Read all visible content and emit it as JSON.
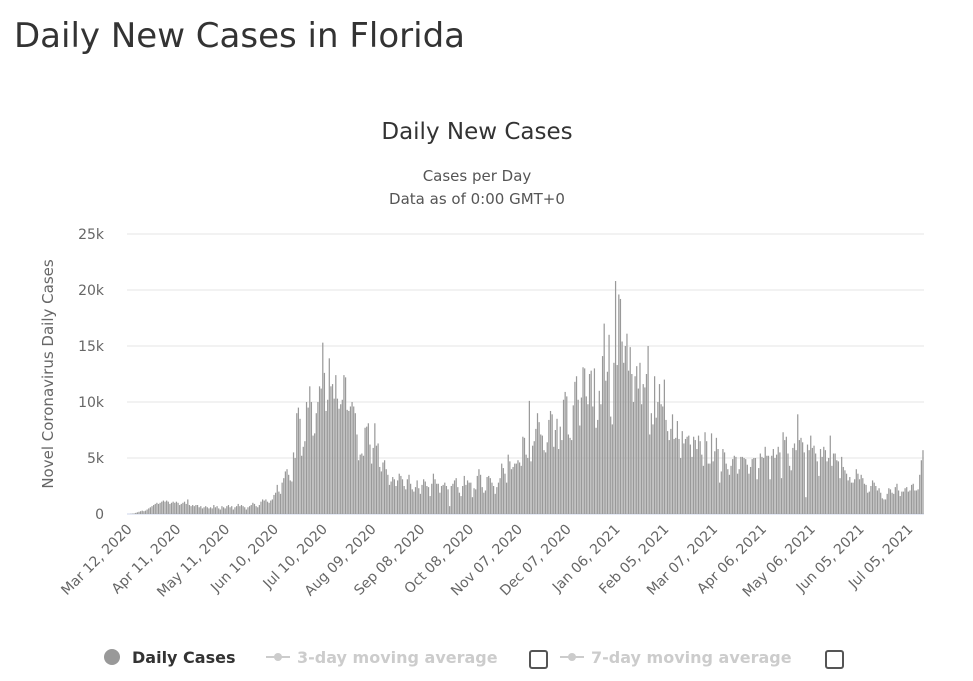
{
  "page": {
    "title": "Daily New Cases in Florida"
  },
  "chart_data": {
    "type": "bar",
    "title": "Daily New Cases",
    "subtitle_lines": [
      "Cases per Day",
      "Data as of 0:00 GMT+0"
    ],
    "ylabel": "Novel Coronavirus Daily Cases",
    "xlabel": "",
    "ylim": [
      0,
      25000
    ],
    "y_ticks": [
      0,
      5000,
      10000,
      15000,
      20000,
      25000
    ],
    "y_tick_labels": [
      "0",
      "5k",
      "10k",
      "15k",
      "20k",
      "25k"
    ],
    "x_start": "Mar 12, 2020",
    "x_tick_day_offsets": [
      0,
      30,
      60,
      90,
      120,
      150,
      180,
      210,
      240,
      270,
      300,
      330,
      360,
      390,
      420,
      450,
      480
    ],
    "x_tick_labels": [
      "Mar 12, 2020",
      "Apr 11, 2020",
      "May 11, 2020",
      "Jun 10, 2020",
      "Jul 10, 2020",
      "Aug 09, 2020",
      "Sep 08, 2020",
      "Oct 08, 2020",
      "Nov 07, 2020",
      "Dec 07, 2020",
      "Jan 06, 2021",
      "Feb 05, 2021",
      "Mar 07, 2021",
      "Apr 06, 2021",
      "May 06, 2021",
      "Jun 05, 2021",
      "Jul 05, 2021"
    ],
    "grid": true,
    "bar_color": "#999999",
    "legend_position": "bottom",
    "legend": [
      {
        "label": "Daily Cases",
        "active": true,
        "color": "#999999"
      },
      {
        "label": "3-day moving average",
        "active": false,
        "color": "#cccccc"
      },
      {
        "label": "7-day moving average",
        "active": false,
        "color": "#cccccc"
      }
    ],
    "values": [
      0,
      0,
      20,
      30,
      50,
      100,
      150,
      200,
      250,
      300,
      250,
      300,
      400,
      500,
      600,
      700,
      800,
      900,
      1000,
      900,
      1000,
      1100,
      1200,
      1100,
      1200,
      1100,
      900,
      1000,
      1100,
      1000,
      1100,
      1000,
      800,
      900,
      1000,
      1100,
      900,
      1300,
      800,
      700,
      800,
      700,
      800,
      800,
      600,
      700,
      500,
      600,
      700,
      600,
      500,
      600,
      500,
      800,
      600,
      700,
      500,
      400,
      700,
      600,
      500,
      700,
      800,
      600,
      700,
      400,
      600,
      700,
      900,
      700,
      800,
      700,
      600,
      400,
      600,
      700,
      800,
      1000,
      900,
      700,
      600,
      800,
      1100,
      1300,
      1200,
      1300,
      1100,
      1000,
      1200,
      1300,
      1700,
      1900,
      2600,
      2000,
      1800,
      2800,
      3200,
      3800,
      4000,
      3500,
      3000,
      2900,
      5500,
      5000,
      9000,
      9500,
      8500,
      5200,
      6000,
      6500,
      10000,
      9500,
      11400,
      10000,
      7000,
      7200,
      9000,
      10000,
      11400,
      11200,
      15300,
      12600,
      9200,
      10200,
      13900,
      11400,
      11600,
      10300,
      12400,
      10300,
      9400,
      9800,
      10200,
      12400,
      12200,
      9300,
      9200,
      9600,
      10000,
      9600,
      9000,
      7100,
      4800,
      5300,
      5400,
      5200,
      7700,
      7800,
      8100,
      6200,
      4500,
      5900,
      8100,
      6100,
      6300,
      4200,
      3800,
      4600,
      4800,
      4000,
      3500,
      2600,
      2900,
      3300,
      3100,
      2500,
      3000,
      3600,
      3400,
      3100,
      2500,
      2200,
      3100,
      3500,
      2700,
      2200,
      2000,
      2400,
      3000,
      2300,
      1800,
      2600,
      3100,
      2900,
      2500,
      2400,
      1600,
      2700,
      3600,
      3100,
      2700,
      2700,
      1900,
      2500,
      2600,
      2800,
      2500,
      2200,
      700,
      2500,
      2700,
      3000,
      3200,
      2400,
      1900,
      1600,
      2500,
      3400,
      2600,
      3000,
      2800,
      2800,
      1500,
      2300,
      2200,
      3400,
      4000,
      3500,
      2400,
      1900,
      2100,
      3300,
      3400,
      3200,
      2800,
      2500,
      1800,
      2400,
      2800,
      3200,
      4500,
      4100,
      3600,
      2800,
      5300,
      4700,
      4000,
      4200,
      4500,
      4500,
      4800,
      4600,
      4300,
      6900,
      6800,
      5300,
      5000,
      10100,
      4700,
      6100,
      6500,
      7600,
      9000,
      8200,
      7100,
      7000,
      5700,
      5500,
      6400,
      8400,
      9200,
      8900,
      6000,
      7500,
      8500,
      5800,
      7800,
      6600,
      10200,
      10900,
      10500,
      7100,
      6800,
      6600,
      9700,
      11800,
      12300,
      10200,
      7900,
      10400,
      13100,
      13000,
      10500,
      9800,
      12500,
      12800,
      9600,
      13000,
      7700,
      8400,
      11000,
      9800,
      14100,
      17000,
      11900,
      12700,
      16000,
      8700,
      8000,
      13500,
      20800,
      13300,
      19600,
      19200,
      15400,
      13500,
      15000,
      16100,
      12800,
      14900,
      12500,
      10000,
      12300,
      13200,
      11200,
      13500,
      9800,
      11600,
      11300,
      12500,
      15000,
      7100,
      9000,
      8000,
      12300,
      8600,
      10000,
      11600,
      9800,
      9600,
      12000,
      8400,
      7400,
      6600,
      7600,
      8900,
      6700,
      6800,
      8300,
      6700,
      5000,
      7400,
      6300,
      6700,
      6900,
      7000,
      6200,
      5100,
      6900,
      6600,
      5800,
      7000,
      6500,
      5300,
      4300,
      7300,
      6500,
      4500,
      4500,
      7200,
      4700,
      5600,
      6800,
      5800,
      2800,
      3800,
      5800,
      5500,
      4500,
      4000,
      3500,
      4300,
      4900,
      5200,
      5100,
      3600,
      4000,
      5100,
      5100,
      5000,
      4900,
      4400,
      3600,
      4200,
      4900,
      5000,
      5000,
      3100,
      4100,
      5400,
      5100,
      5000,
      6000,
      5200,
      5200,
      3100,
      5200,
      5800,
      5000,
      5300,
      6000,
      5500,
      3200,
      7300,
      6600,
      6900,
      5400,
      4300,
      3900,
      5900,
      6300,
      5700,
      8900,
      6600,
      6800,
      6400,
      5500,
      1500,
      6200,
      5700,
      7000,
      5900,
      6100,
      5400,
      4700,
      3400,
      5800,
      5100,
      6000,
      5700,
      4700,
      5000,
      7000,
      4300,
      5400,
      5400,
      4800,
      4700,
      3200,
      5100,
      4200,
      3900,
      3600,
      3000,
      3300,
      2800,
      2800,
      3100,
      4000,
      3600,
      3100,
      3500,
      3200,
      2700,
      2600,
      1900,
      2000,
      2500,
      3000,
      2800,
      2500,
      2100,
      2300,
      1900,
      1400,
      1300,
      1300,
      1800,
      2300,
      2200,
      1900,
      1800,
      2400,
      2700,
      2100,
      1600,
      2000,
      2000,
      2300,
      2400,
      2000,
      2100,
      2600,
      2700,
      2100,
      2100,
      2200,
      3500,
      4800,
      5700
    ]
  }
}
